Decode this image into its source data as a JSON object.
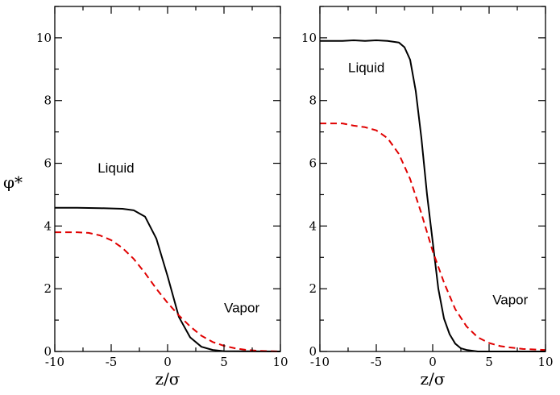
{
  "chart_data": [
    {
      "type": "line",
      "panel": "left",
      "xlabel": "z/σ",
      "ylabel": "φ*",
      "xlim": [
        -10,
        10
      ],
      "ylim": [
        0,
        11
      ],
      "xticks": [
        -10,
        -5,
        0,
        5,
        10
      ],
      "yticks": [
        0,
        2,
        4,
        6,
        8,
        10
      ],
      "grid": false,
      "annotations": [
        {
          "text": "Liquid",
          "x": -6.2,
          "y": 5.7
        },
        {
          "text": "Vapor",
          "x": 5.0,
          "y": 1.25
        }
      ],
      "series": [
        {
          "color": "#000000",
          "style": "solid",
          "points": [
            [
              -10,
              4.58
            ],
            [
              -8,
              4.58
            ],
            [
              -6,
              4.57
            ],
            [
              -4,
              4.55
            ],
            [
              -3,
              4.5
            ],
            [
              -2,
              4.3
            ],
            [
              -1,
              3.6
            ],
            [
              0,
              2.4
            ],
            [
              1,
              1.1
            ],
            [
              2,
              0.45
            ],
            [
              3,
              0.15
            ],
            [
              4,
              0.05
            ],
            [
              5,
              0.01
            ],
            [
              10,
              0.0
            ]
          ]
        },
        {
          "color": "#e00000",
          "style": "dashed",
          "points": [
            [
              -10,
              3.8
            ],
            [
              -8,
              3.8
            ],
            [
              -7,
              3.78
            ],
            [
              -6,
              3.7
            ],
            [
              -5,
              3.55
            ],
            [
              -4,
              3.3
            ],
            [
              -3,
              2.95
            ],
            [
              -2,
              2.5
            ],
            [
              -1,
              2.0
            ],
            [
              0,
              1.55
            ],
            [
              1,
              1.15
            ],
            [
              2,
              0.8
            ],
            [
              3,
              0.5
            ],
            [
              4,
              0.3
            ],
            [
              5,
              0.18
            ],
            [
              6,
              0.1
            ],
            [
              7,
              0.05
            ],
            [
              8,
              0.02
            ],
            [
              10,
              0.0
            ]
          ]
        }
      ]
    },
    {
      "type": "line",
      "panel": "right",
      "xlabel": "z/σ",
      "ylabel": "",
      "xlim": [
        -10,
        10
      ],
      "ylim": [
        0,
        11
      ],
      "xticks": [
        -10,
        -5,
        0,
        5,
        10
      ],
      "yticks": [
        0,
        2,
        4,
        6,
        8,
        10
      ],
      "grid": false,
      "annotations": [
        {
          "text": "Liquid",
          "x": -7.5,
          "y": 8.9
        },
        {
          "text": "Vapor",
          "x": 5.3,
          "y": 1.5
        }
      ],
      "series": [
        {
          "color": "#000000",
          "style": "solid",
          "points": [
            [
              -10,
              9.9
            ],
            [
              -8,
              9.9
            ],
            [
              -7,
              9.92
            ],
            [
              -6,
              9.9
            ],
            [
              -5,
              9.92
            ],
            [
              -4,
              9.9
            ],
            [
              -3,
              9.85
            ],
            [
              -2.5,
              9.7
            ],
            [
              -2,
              9.3
            ],
            [
              -1.5,
              8.3
            ],
            [
              -1,
              6.8
            ],
            [
              -0.5,
              5.0
            ],
            [
              0,
              3.5
            ],
            [
              0.5,
              2.0
            ],
            [
              1,
              1.05
            ],
            [
              1.5,
              0.55
            ],
            [
              2,
              0.25
            ],
            [
              2.5,
              0.1
            ],
            [
              3,
              0.05
            ],
            [
              4,
              0.0
            ],
            [
              10,
              0.0
            ]
          ]
        },
        {
          "color": "#e00000",
          "style": "dashed",
          "points": [
            [
              -10,
              7.27
            ],
            [
              -8,
              7.27
            ],
            [
              -7,
              7.2
            ],
            [
              -6,
              7.15
            ],
            [
              -5,
              7.05
            ],
            [
              -4,
              6.8
            ],
            [
              -3,
              6.3
            ],
            [
              -2,
              5.5
            ],
            [
              -1,
              4.4
            ],
            [
              0,
              3.2
            ],
            [
              1,
              2.2
            ],
            [
              2,
              1.35
            ],
            [
              3,
              0.8
            ],
            [
              4,
              0.45
            ],
            [
              5,
              0.27
            ],
            [
              6,
              0.17
            ],
            [
              7,
              0.12
            ],
            [
              8,
              0.08
            ],
            [
              10,
              0.05
            ]
          ]
        }
      ]
    }
  ]
}
